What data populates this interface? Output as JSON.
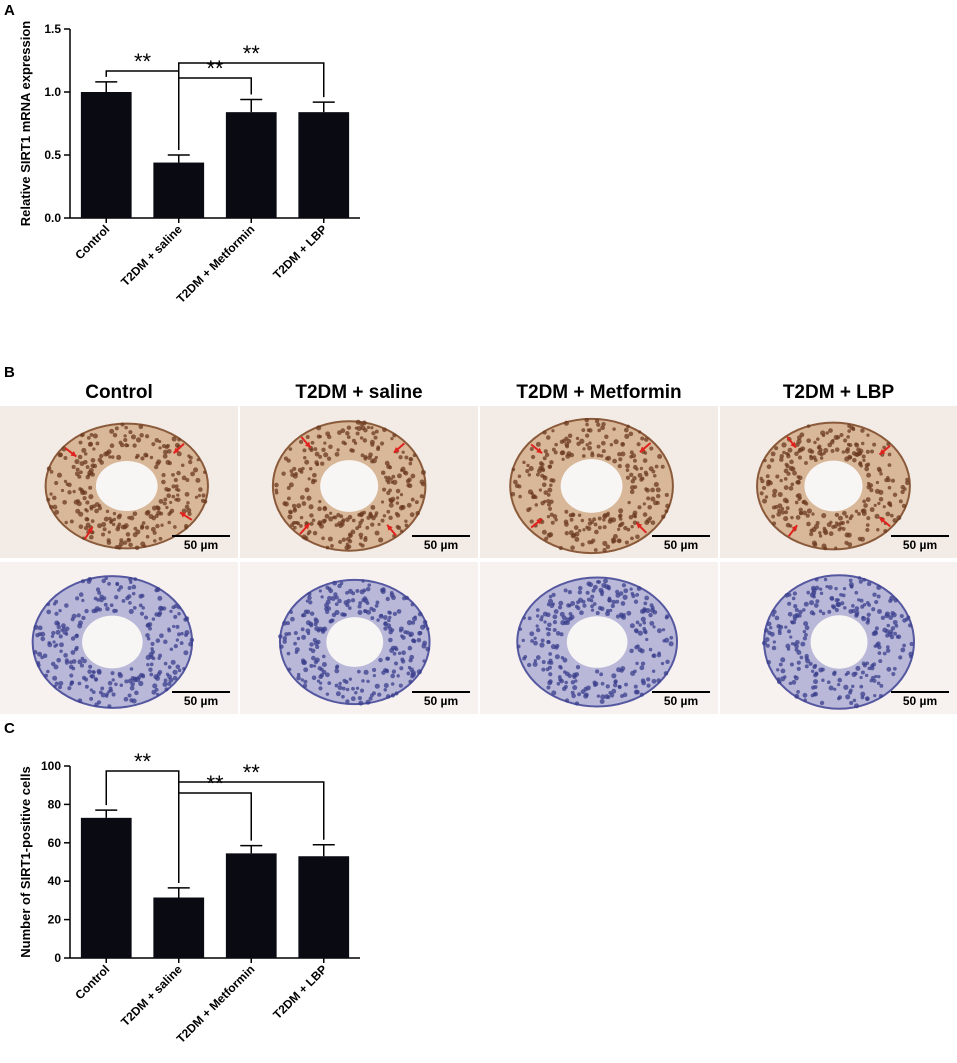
{
  "panels": {
    "a": {
      "letter": "A"
    },
    "b": {
      "letter": "B"
    },
    "c": {
      "letter": "C"
    }
  },
  "sig_label": "**",
  "chart_data": [
    {
      "id": "A",
      "type": "bar",
      "categories": [
        "Control",
        "T2DM + saline",
        "T2DM + Metformin",
        "T2DM + LBP"
      ],
      "values": [
        1.0,
        0.44,
        0.84,
        0.84
      ],
      "errors": [
        0.08,
        0.06,
        0.1,
        0.08
      ],
      "ylabel": "Relative SIRT1 mRNA expression",
      "ylim": [
        0,
        1.5
      ],
      "yticks": [
        "0.0",
        "0.5",
        "1.0",
        "1.5"
      ],
      "ytick_values": [
        0,
        0.5,
        1.0,
        1.5
      ],
      "bar_color": "#0a0a12",
      "significance": [
        {
          "from": 0,
          "to": 1,
          "label": "**"
        },
        {
          "from": 1,
          "to": 2,
          "label": "**"
        },
        {
          "from": 1,
          "to": 3,
          "label": "**"
        }
      ]
    },
    {
      "id": "C",
      "type": "bar",
      "categories": [
        "Control",
        "T2DM + saline",
        "T2DM + Metformin",
        "T2DM + LBP"
      ],
      "values": [
        73,
        31.5,
        54.5,
        53
      ],
      "errors": [
        4,
        5,
        4,
        6
      ],
      "ylabel": "Number of SIRT1-positive cells",
      "ylim": [
        0,
        100
      ],
      "yticks": [
        "0",
        "20",
        "40",
        "60",
        "80",
        "100"
      ],
      "ytick_values": [
        0,
        20,
        40,
        60,
        80,
        100
      ],
      "bar_color": "#0a0a12",
      "significance": [
        {
          "from": 0,
          "to": 1,
          "label": "**"
        },
        {
          "from": 1,
          "to": 2,
          "label": "**"
        },
        {
          "from": 1,
          "to": 3,
          "label": "**"
        }
      ]
    }
  ],
  "micrographs": {
    "columns": [
      "Control",
      "T2DM + saline",
      "T2DM + Metformin",
      "T2DM + LBP"
    ],
    "scale_label": "50 µm",
    "stain_colors": {
      "positive_row_bg": "#f3ece6",
      "negative_row_bg": "#f7f2ef",
      "nuclei_positive": "#6b3a1f",
      "nuclei_negative": "#3b3f8c",
      "arrow": "#e0221e"
    }
  }
}
